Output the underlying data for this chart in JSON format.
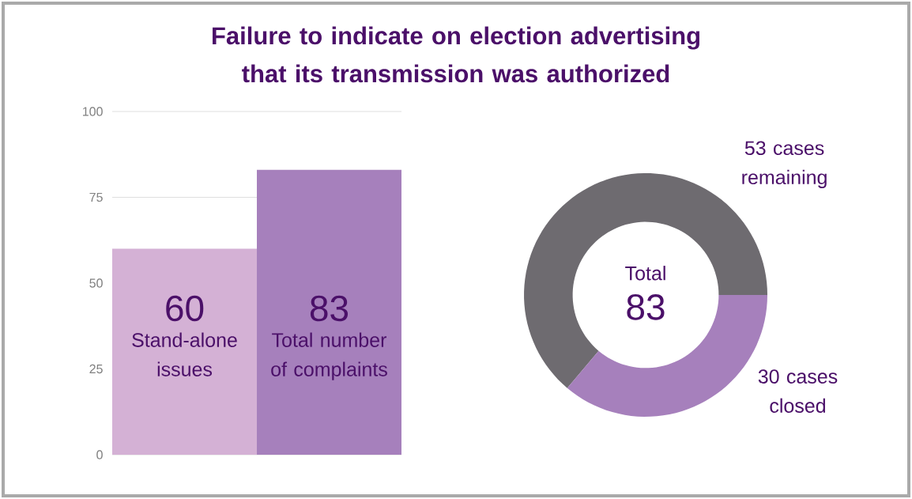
{
  "chart_data": [
    {
      "type": "bar",
      "title": "Failure to indicate on election advertising that its transmission was authorized",
      "categories": [
        "Stand-alone issues",
        "Total number of complaints"
      ],
      "values": [
        60,
        83
      ],
      "colors": [
        "#d4b1d5",
        "#a680bc"
      ],
      "ylim": [
        0,
        100
      ],
      "yticks": [
        0,
        25,
        50,
        75,
        100
      ],
      "grid": "y",
      "data_labels": true
    },
    {
      "type": "donut",
      "categories": [
        "53 cases remaining",
        "30 cases closed"
      ],
      "values": [
        53,
        30
      ],
      "colors": [
        "#6e6b70",
        "#a680bc"
      ],
      "annotations": [
        "Total",
        "83"
      ]
    }
  ]
}
